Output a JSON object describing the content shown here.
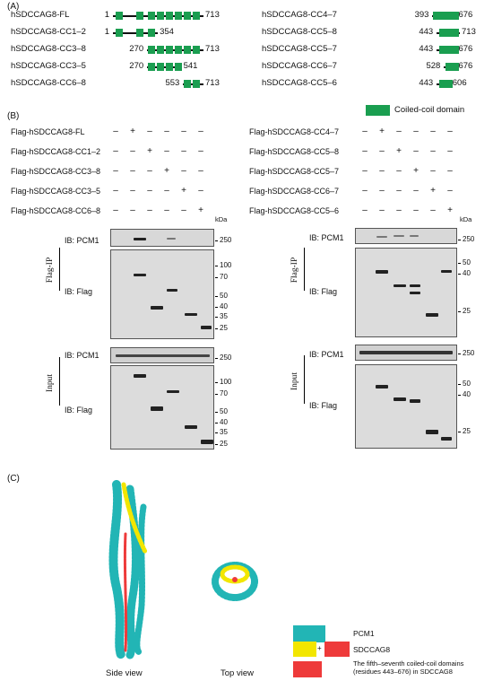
{
  "panel_a_label": "(A)",
  "panel_b_label": "(B)",
  "panel_c_label": "(C)",
  "constructs_left": [
    {
      "name": "hSDCCAG8-FL",
      "start": "1",
      "end": "713"
    },
    {
      "name": "hSDCCAG8-CC1–2",
      "start": "1",
      "end": "354"
    },
    {
      "name": "hSDCCAG8-CC3–8",
      "start": "270",
      "end": "713"
    },
    {
      "name": "hSDCCAG8-CC3–5",
      "start": "270",
      "end": "541"
    },
    {
      "name": "hSDCCAG8-CC6–8",
      "start": "553",
      "end": "713"
    }
  ],
  "constructs_right": [
    {
      "name": "hSDCCAG8-CC4–7",
      "start": "393",
      "end": "676"
    },
    {
      "name": "hSDCCAG8-CC5–8",
      "start": "443",
      "end": "713"
    },
    {
      "name": "hSDCCAG8-CC5–7",
      "start": "443",
      "end": "676"
    },
    {
      "name": "hSDCCAG8-CC6–7",
      "start": "528",
      "end": "676"
    },
    {
      "name": "hSDCCAG8-CC5–6",
      "start": "443",
      "end": "606"
    }
  ],
  "legend_coiled_coil": "Coiled-coil domain",
  "legend_color": "#1a9e50",
  "left_conditions": [
    {
      "label": "Flag-hSDCCAG8-FL",
      "signs": [
        "–",
        "+",
        "–",
        "–",
        "–",
        "–"
      ]
    },
    {
      "label": "Flag-hSDCCAG8-CC1–2",
      "signs": [
        "–",
        "–",
        "+",
        "–",
        "–",
        "–"
      ]
    },
    {
      "label": "Flag-hSDCCAG8-CC3–8",
      "signs": [
        "–",
        "–",
        "–",
        "+",
        "–",
        "–"
      ]
    },
    {
      "label": "Flag-hSDCCAG8-CC3–5",
      "signs": [
        "–",
        "–",
        "–",
        "–",
        "+",
        "–"
      ]
    },
    {
      "label": "Flag-hSDCCAG8-CC6–8",
      "signs": [
        "–",
        "–",
        "–",
        "–",
        "–",
        "+"
      ]
    }
  ],
  "right_conditions": [
    {
      "label": "Flag-hSDCCAG8-CC4–7",
      "signs": [
        "–",
        "+",
        "–",
        "–",
        "–",
        "–"
      ]
    },
    {
      "label": "Flag-hSDCCAG8-CC5–8",
      "signs": [
        "–",
        "–",
        "+",
        "–",
        "–",
        "–"
      ]
    },
    {
      "label": "Flag-hSDCCAG8-CC5–7",
      "signs": [
        "–",
        "–",
        "–",
        "+",
        "–",
        "–"
      ]
    },
    {
      "label": "Flag-hSDCCAG8-CC6–7",
      "signs": [
        "–",
        "–",
        "–",
        "–",
        "+",
        "–"
      ]
    },
    {
      "label": "Flag-hSDCCAG8-CC5–6",
      "signs": [
        "–",
        "–",
        "–",
        "–",
        "–",
        "+"
      ]
    }
  ],
  "kda": "kDa",
  "ib_pcm1": "IB: PCM1",
  "ib_flag": "IB: Flag",
  "flag_ip": "Flag-IP",
  "input": "Input",
  "left_markers_pcm1": [
    "250"
  ],
  "left_markers_flag": [
    "100",
    "70",
    "50",
    "40",
    "35",
    "25"
  ],
  "right_markers_pcm1": [
    "250"
  ],
  "right_markers_flag_ip": [
    "50",
    "40",
    "25"
  ],
  "right_markers_flag_input": [
    "50",
    "40",
    "25"
  ],
  "side_view": "Side view",
  "top_view": "Top view",
  "legend_pcm1": "PCM1",
  "legend_sdccag8": "SDCCAG8",
  "legend_plus": "+",
  "legend_cc57": "The fifth–seventh coiled-coil domains (residues 443–676) in SDCCAG8",
  "colors": {
    "pcm1": "#22b5b5",
    "sdccag8_yellow": "#f2e600",
    "sdccag8_red": "#ee3a3a"
  }
}
